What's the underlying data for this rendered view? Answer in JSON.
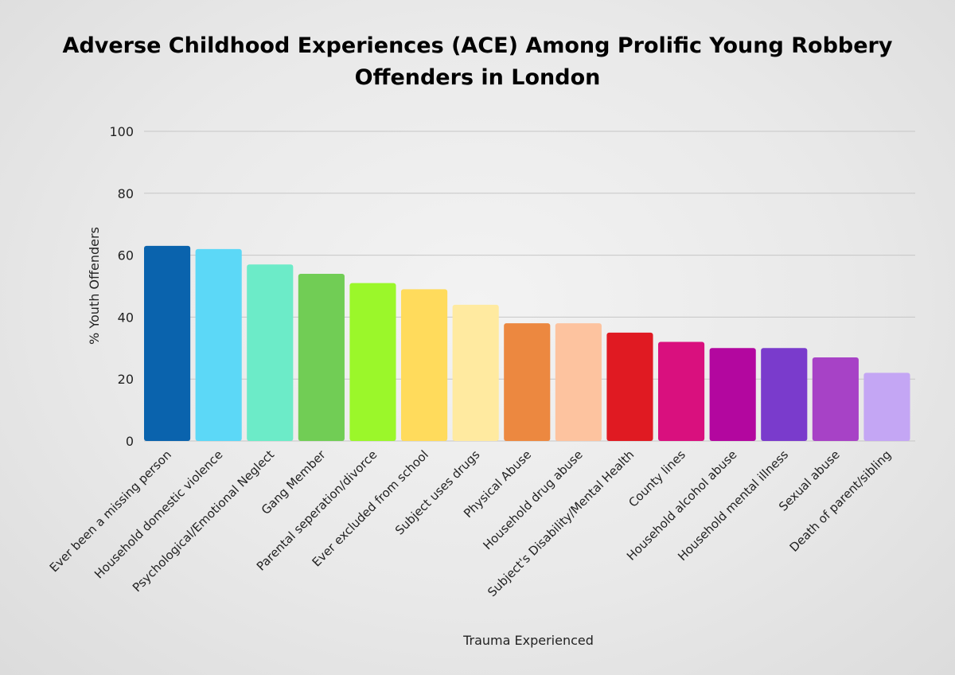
{
  "chart_data": {
    "type": "bar",
    "title": "Adverse Childhood Experiences (ACE) Among Prolific Young Robbery Offenders in London",
    "xlabel": "Trauma Experienced",
    "ylabel": "% Youth Offenders",
    "ylim": [
      0,
      100
    ],
    "yticks": [
      "0",
      "20",
      "40",
      "60",
      "80",
      "100"
    ],
    "grid": true,
    "legend": "none",
    "categories": [
      "Ever been a missing person",
      "Household domestic violence",
      "Psychological/Emotional Neglect",
      "Gang Member",
      "Parental seperation/divorce",
      "Ever excluded from school",
      "Subject uses drugs",
      "Physical Abuse",
      "Household drug abuse",
      "Subject's Disability/Mental Health",
      "County lines",
      "Household alcohol abuse",
      "Household mental illness",
      "Sexual abuse",
      "Death of parent/sibling"
    ],
    "values": [
      63,
      62,
      57,
      54,
      51,
      49,
      44,
      38,
      38,
      35,
      32,
      30,
      30,
      27,
      22
    ],
    "colors": [
      "#0a63ad",
      "#5cd8f7",
      "#6cebc8",
      "#71cd55",
      "#9bf72a",
      "#ffdb5c",
      "#ffeaa0",
      "#ec8840",
      "#fdc39f",
      "#e01a22",
      "#d9107e",
      "#b3079f",
      "#7a3bcc",
      "#a742c6",
      "#c4a6f4"
    ]
  }
}
